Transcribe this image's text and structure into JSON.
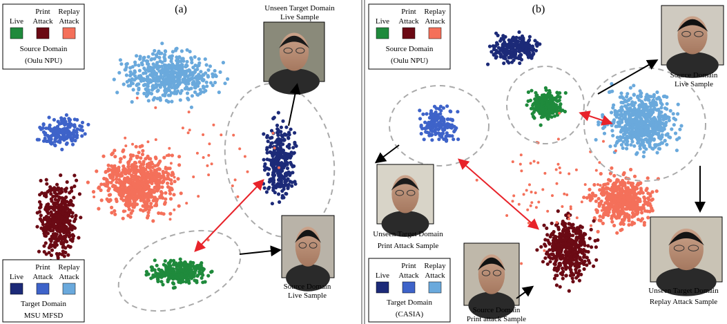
{
  "panels": [
    {
      "label": "(a)",
      "legend_top": {
        "row1": [
          "Print",
          "Replay"
        ],
        "row2": [
          "Live",
          "Attack",
          "Attack"
        ],
        "domain": "Source Domain",
        "dataset": "(Oulu NPU)",
        "colors": [
          "#1f8a3c",
          "#6b0a14",
          "#f4705a"
        ]
      },
      "legend_bottom": {
        "row1": [
          "Print",
          "Replay"
        ],
        "row2": [
          "Live",
          "Attack",
          "Attack"
        ],
        "domain": "Target Domain",
        "dataset": "MSU MFSD",
        "colors": [
          "#1c2a78",
          "#3e63c9",
          "#6aa9dc"
        ]
      },
      "captions": [
        {
          "line1": "Unseen Target Domain",
          "line2": "Live Sample"
        },
        {
          "line1": "Source Domain",
          "line2": "Live Sample"
        }
      ]
    },
    {
      "label": "(b)",
      "legend_top": {
        "row1": [
          "Print",
          "Replay"
        ],
        "row2": [
          "Live",
          "Attack",
          "Attack"
        ],
        "domain": "Source Domain",
        "dataset": "(Oulu NPU)",
        "colors": [
          "#1f8a3c",
          "#6b0a14",
          "#f4705a"
        ]
      },
      "legend_bottom": {
        "row1": [
          "Print",
          "Replay"
        ],
        "row2": [
          "Live",
          "Attack",
          "Attack"
        ],
        "domain": "Target Domain",
        "dataset": "(CASIA)",
        "colors": [
          "#1c2a78",
          "#3e63c9",
          "#6aa9dc"
        ]
      },
      "captions": [
        {
          "line1": "Source Domain",
          "line2": "Live Sample"
        },
        {
          "line1": "Unseen Target Domain",
          "line2": "Print Attack Sample"
        },
        {
          "line1": "Source Domain",
          "line2": "Print attack Sample"
        },
        {
          "line1": "Unseen Target Domain",
          "line2": "Replay Attack Sample"
        }
      ]
    }
  ],
  "cluster_colors": {
    "source_live": "#1f8a3c",
    "source_print": "#6b0a14",
    "source_replay": "#f4705a",
    "target_live": "#1c2a78",
    "target_print": "#3e63c9",
    "target_replay": "#6aa9dc"
  },
  "icons": [
    "face-photo",
    "arrow",
    "dashed-ellipse"
  ]
}
